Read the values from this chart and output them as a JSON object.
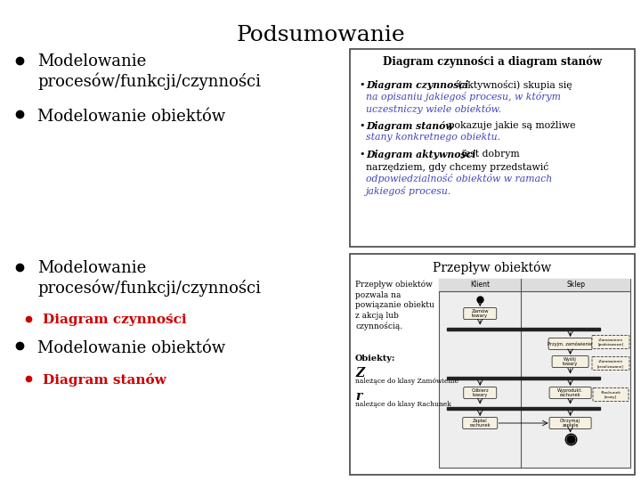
{
  "title": "Podsumowanie",
  "bg_color": "#ffffff",
  "title_fontsize": 18,
  "bullet_fontsize": 13,
  "sub_bullet_color_red": "#cc0000",
  "sub_bullet_1": "Diagram czynności",
  "sub_bullet_2": "Diagram stanów",
  "box1_title": "Diagram czynności a diagram stanów",
  "box2_title": "Przepływ obiektów"
}
